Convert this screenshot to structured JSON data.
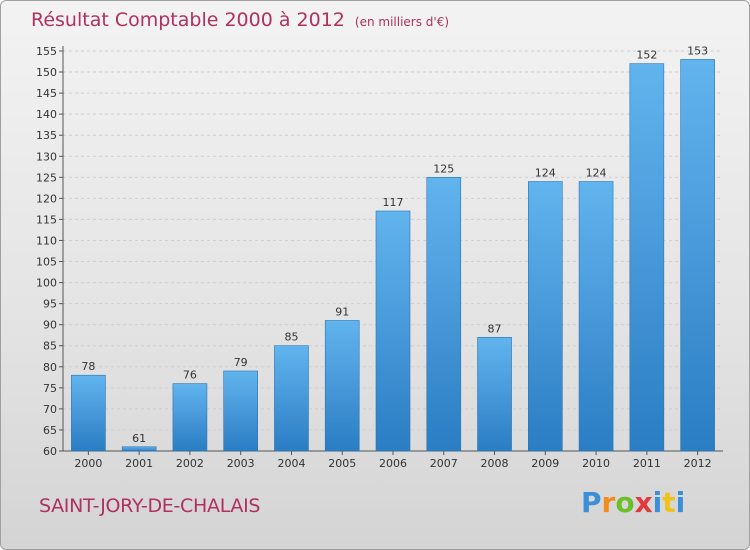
{
  "title": "Résultat Comptable 2000 à 2012",
  "subtitle": "(en milliers d'€)",
  "commune": "SAINT-JORY-DE-CHALAIS",
  "logo": "Proxiti",
  "colors": {
    "title": "#b03060",
    "bar_light": "#62b4ee",
    "bar_dark": "#2b7dc4"
  },
  "chart_data": {
    "type": "bar",
    "title": "Résultat Comptable 2000 à 2012",
    "subtitle": "(en milliers d'€)",
    "categories": [
      "2000",
      "2001",
      "2002",
      "2003",
      "2004",
      "2005",
      "2006",
      "2007",
      "2008",
      "2009",
      "2010",
      "2011",
      "2012"
    ],
    "values": [
      78,
      61,
      76,
      79,
      85,
      91,
      117,
      125,
      87,
      124,
      124,
      152,
      153
    ],
    "ylim": [
      60,
      155
    ],
    "yticks": [
      60,
      65,
      70,
      75,
      80,
      85,
      90,
      95,
      100,
      105,
      110,
      115,
      120,
      125,
      130,
      135,
      140,
      145,
      150,
      155
    ],
    "grid": true,
    "xlabel": "",
    "ylabel": ""
  }
}
